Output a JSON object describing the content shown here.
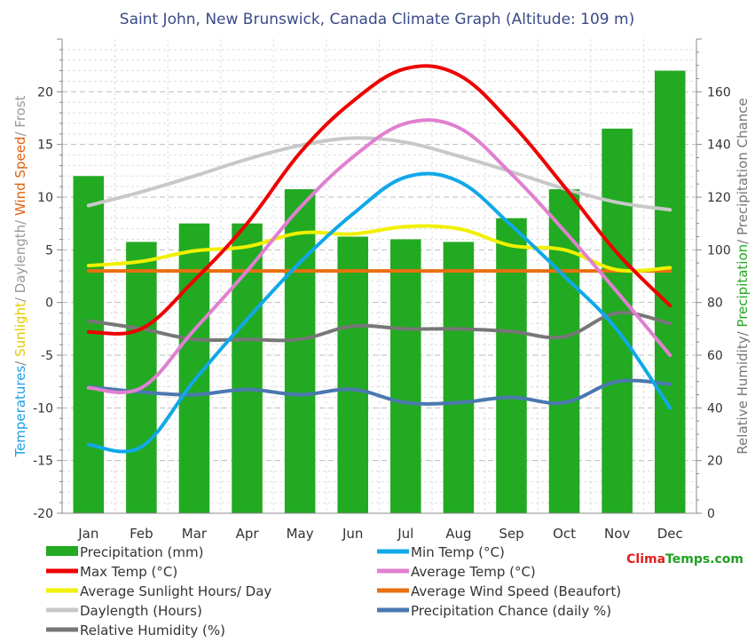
{
  "chart_data": {
    "type": "bar+line",
    "title": "Saint John, New Brunswick, Canada Climate Graph (Altitude: 109 m)",
    "brand": "ClimaTemps.com",
    "categories": [
      "Jan",
      "Feb",
      "Mar",
      "Apr",
      "May",
      "Jun",
      "Jul",
      "Aug",
      "Sep",
      "Oct",
      "Nov",
      "Dec"
    ],
    "left_axis": {
      "range": [
        -20,
        25
      ],
      "ticks": [
        -20,
        -15,
        -10,
        -5,
        0,
        5,
        10,
        15,
        20
      ],
      "label_parts": [
        {
          "text": "Temperatures",
          "color": "#1fa0e0"
        },
        {
          "text": "/ ",
          "color": "#888888"
        },
        {
          "text": "Sunlight",
          "color": "#e6c800"
        },
        {
          "text": "/ Daylength/ ",
          "color": "#999999"
        },
        {
          "text": "Wind Speed",
          "color": "#e06010"
        },
        {
          "text": "/ Frost",
          "color": "#999999"
        }
      ]
    },
    "right_axis": {
      "range": [
        0,
        180
      ],
      "ticks": [
        0,
        20,
        40,
        60,
        80,
        100,
        120,
        140,
        160
      ],
      "label_parts": [
        {
          "text": "Relative Humidity/ ",
          "color": "#777777"
        },
        {
          "text": "Precipitation",
          "color": "#22aa22"
        },
        {
          "text": "/ Precipitation Chance",
          "color": "#777777"
        }
      ]
    },
    "precipitation": {
      "name": "Precipitation (mm)",
      "color": "#22aa22",
      "axis": "right",
      "values": [
        128,
        103,
        110,
        110,
        123,
        105,
        104,
        103,
        112,
        123,
        146,
        168
      ]
    },
    "series": [
      {
        "name": "Min Temp (°C)",
        "color": "#10a8e8",
        "axis": "left",
        "values": [
          -13.5,
          -13.7,
          -7.4,
          -1.6,
          3.8,
          8.4,
          11.9,
          11.5,
          7.3,
          2.5,
          -2.6,
          -10
        ]
      },
      {
        "name": "Max Temp (°C)",
        "color": "#ee0000",
        "axis": "left",
        "values": [
          -2.8,
          -2.5,
          2.1,
          7.5,
          14.2,
          19.1,
          22.2,
          21.6,
          17,
          11,
          4.7,
          -0.3
        ]
      },
      {
        "name": "Average Temp (°C)",
        "color": "#e080d0",
        "axis": "left",
        "values": [
          -8.1,
          -8.1,
          -2.6,
          3,
          9,
          13.8,
          17,
          16.6,
          12.2,
          6.8,
          1,
          -5
        ]
      },
      {
        "name": "Average Sunlight Hours/ Day",
        "color": "#f0f000",
        "axis": "left",
        "values": [
          3.5,
          3.9,
          4.9,
          5.3,
          6.6,
          6.5,
          7.2,
          7,
          5.4,
          5,
          3.1,
          3.3
        ]
      },
      {
        "name": "Average Wind Speed (Beaufort)",
        "color": "#e87010",
        "axis": "left",
        "values": [
          3,
          3,
          3,
          3,
          3,
          3,
          3,
          3,
          3,
          3,
          3,
          3
        ]
      },
      {
        "name": "Daylength (Hours)",
        "color": "#c8c8c8",
        "axis": "left",
        "values": [
          9.2,
          10.5,
          12,
          13.6,
          14.9,
          15.6,
          15.2,
          13.9,
          12.4,
          10.8,
          9.5,
          8.8
        ]
      },
      {
        "name": "Precipitation Chance (daily %)",
        "color": "#4a78b0",
        "axis": "right",
        "values": [
          48,
          46,
          45,
          47,
          45,
          47,
          42,
          42,
          44,
          42,
          50,
          49
        ]
      },
      {
        "name": "Relative Humidity (%)",
        "color": "#777777",
        "axis": "right",
        "values": [
          73,
          70,
          66,
          66,
          66,
          71,
          70,
          70,
          69,
          67,
          76,
          72
        ]
      }
    ],
    "legend_order": [
      "Precipitation (mm)",
      "Min Temp (°C)",
      "Max Temp (°C)",
      "Average Temp (°C)",
      "Average Sunlight Hours/ Day",
      "Average Wind Speed (Beaufort)",
      "Daylength (Hours)",
      "Precipitation Chance (daily %)",
      "Relative Humidity (%)"
    ]
  }
}
